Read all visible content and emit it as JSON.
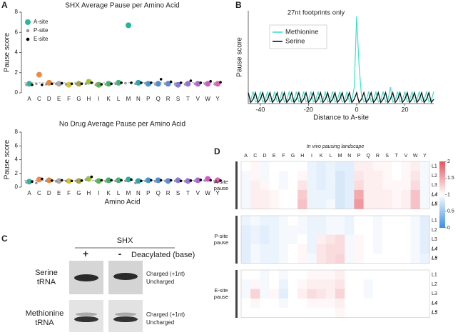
{
  "panel_labels": [
    "A",
    "B",
    "C",
    "D"
  ],
  "chart_data": [
    {
      "type": "dot",
      "title": "SHX Average Pause per Amino Acid",
      "y_label": "Pause score",
      "categories": [
        "A",
        "C",
        "D",
        "E",
        "F",
        "G",
        "H",
        "I",
        "K",
        "L",
        "M",
        "N",
        "P",
        "Q",
        "R",
        "S",
        "T",
        "V",
        "W",
        "Y"
      ],
      "ylim": [
        0,
        8
      ],
      "yticks": [
        0,
        2,
        4,
        6,
        8
      ],
      "reference_line": 1,
      "legend": "upper left",
      "series": [
        {
          "name": "A-site",
          "color": "#2bb5a2",
          "colors": [
            "#2bb5a2",
            "#f08a4b",
            "#e8893a",
            "#a9a9a9",
            "#d9c42a",
            "#a3a63a",
            "#9cc43a",
            "#54b948",
            "#3fb16a",
            "#43b57a",
            "#27b3a0",
            "#26a9b4",
            "#3a9ad8",
            "#4a8fd8",
            "#5a8ad8",
            "#8c7ad8",
            "#9a6fd8",
            "#b166d4",
            "#d257cf",
            "#e45fb0"
          ],
          "values": [
            0.9,
            1.8,
            1.0,
            0.9,
            0.8,
            0.9,
            1.1,
            0.8,
            0.9,
            1.0,
            6.7,
            1.0,
            0.9,
            0.9,
            0.9,
            0.8,
            0.9,
            0.9,
            0.9,
            0.9
          ]
        },
        {
          "name": "P-site",
          "color": "#999999",
          "values": [
            0.8,
            0.9,
            0.85,
            0.9,
            0.85,
            0.9,
            0.9,
            0.8,
            0.85,
            0.9,
            0.95,
            0.9,
            0.95,
            0.85,
            0.9,
            0.85,
            0.85,
            0.9,
            0.9,
            0.85
          ]
        },
        {
          "name": "E-site",
          "color": "#000000",
          "values": [
            0.8,
            0.8,
            0.9,
            0.95,
            0.9,
            0.9,
            1.0,
            0.85,
            0.9,
            1.0,
            1.0,
            1.0,
            1.0,
            1.35,
            1.1,
            1.0,
            1.2,
            1.0,
            1.15,
            1.05
          ]
        }
      ]
    },
    {
      "type": "dot",
      "title": "No Drug Average Pause per Amino Acid",
      "y_label": "Pause score",
      "x_label": "Amino Acid",
      "categories": [
        "A",
        "C",
        "D",
        "E",
        "F",
        "G",
        "H",
        "I",
        "K",
        "L",
        "M",
        "N",
        "P",
        "Q",
        "R",
        "S",
        "T",
        "V",
        "W",
        "Y"
      ],
      "ylim": [
        0,
        8
      ],
      "yticks": [
        0,
        2,
        4,
        6,
        8
      ],
      "reference_line": 1,
      "series": [
        {
          "color": "#2bb5a2",
          "colors": [
            "#2bb5a2",
            "#f08a4b",
            "#e8893a",
            "#a9a9a9",
            "#d9c42a",
            "#a3a63a",
            "#9cc43a",
            "#54b948",
            "#3fb16a",
            "#43b57a",
            "#27b3a0",
            "#26a9b4",
            "#3a9ad8",
            "#4a8fd8",
            "#5a8ad8",
            "#8c7ad8",
            "#9a6fd8",
            "#b166d4",
            "#d257cf",
            "#e45fb0"
          ],
          "values": [
            0.8,
            1.1,
            1.0,
            0.9,
            0.9,
            0.9,
            1.2,
            0.9,
            1.0,
            1.0,
            1.1,
            0.9,
            1.0,
            1.0,
            0.9,
            1.0,
            0.9,
            1.0,
            1.2,
            1.0
          ]
        },
        {
          "color": "#999999",
          "values": [
            0.7,
            0.6,
            0.9,
            0.85,
            0.9,
            0.9,
            1.1,
            0.9,
            0.85,
            0.9,
            0.9,
            0.6,
            0.9,
            0.85,
            0.9,
            0.9,
            0.85,
            0.9,
            0.95,
            0.8
          ]
        },
        {
          "color": "#000000",
          "values": [
            0.8,
            1.2,
            0.95,
            1.0,
            0.9,
            0.95,
            1.5,
            1.0,
            1.0,
            1.0,
            1.1,
            0.9,
            1.0,
            1.0,
            1.0,
            0.9,
            0.95,
            1.05,
            1.0,
            0.95
          ]
        }
      ]
    },
    {
      "type": "line",
      "title": "27nt footprints only",
      "x_label": "Distance to A-site",
      "y_label": "Pause score",
      "x": [
        -45,
        -44,
        -43,
        -42,
        -41,
        -40,
        -39,
        -38,
        -37,
        -36,
        -35,
        -34,
        -33,
        -32,
        -31,
        -30,
        -29,
        -28,
        -27,
        -26,
        -25,
        -24,
        -23,
        -22,
        -21,
        -20,
        -19,
        -18,
        -17,
        -16,
        -15,
        -14,
        -13,
        -12,
        -11,
        -10,
        -9,
        -8,
        -7,
        -6,
        -5,
        -4,
        -3,
        -2,
        -1,
        0,
        1,
        2,
        3,
        4,
        5,
        6,
        7,
        8,
        9,
        10,
        11,
        12,
        13,
        14,
        15,
        16,
        17,
        18,
        19,
        20,
        21,
        22,
        23,
        24,
        25,
        26,
        27,
        28,
        29,
        30,
        31,
        32
      ],
      "xlim": [
        -45,
        32
      ],
      "xticks": [
        -40,
        -20,
        0,
        20
      ],
      "ylim": [
        0,
        17
      ],
      "legend": "upper left",
      "series": [
        {
          "name": "Methionine",
          "color": "#3fe0d0",
          "values": [
            0.3,
            0.6,
            2.2,
            0.3,
            0.6,
            2.2,
            0.3,
            0.6,
            2.2,
            0.3,
            0.6,
            2.2,
            0.3,
            0.6,
            2.2,
            0.3,
            0.6,
            2.2,
            0.3,
            0.6,
            2.2,
            0.3,
            0.6,
            2.2,
            0.3,
            0.6,
            2.2,
            0.3,
            0.6,
            2.2,
            0.3,
            0.6,
            2.2,
            0.3,
            0.6,
            2.2,
            0.3,
            0.6,
            2.2,
            0.3,
            0.6,
            2.2,
            0.3,
            0.6,
            3.0,
            16,
            7,
            1.5,
            0.3,
            0.6,
            2.2,
            0.3,
            0.6,
            2.2,
            0.3,
            0.6,
            2.2,
            0.3,
            0.6,
            3.0,
            0.3,
            0.6,
            2.2,
            0.3,
            0.6,
            2.2,
            0.3,
            0.6,
            2.2,
            0.3,
            0.6,
            2.2,
            0.3,
            0.6,
            2.2,
            0.3,
            0.6,
            2.2
          ]
        },
        {
          "name": "Serine",
          "color": "#111111",
          "values": [
            2,
            0.2,
            0.8,
            2,
            0.2,
            0.8,
            2,
            0.2,
            0.8,
            2,
            0.2,
            0.8,
            2,
            0.2,
            0.8,
            2,
            0.2,
            0.8,
            2,
            0.2,
            0.8,
            2,
            0.2,
            0.8,
            2,
            0.2,
            0.8,
            2,
            0.2,
            0.8,
            2,
            0.2,
            0.8,
            2,
            0.2,
            0.8,
            2,
            0.2,
            0.8,
            2,
            0.2,
            0.8,
            2,
            0.2,
            0.8,
            2,
            0.2,
            0.8,
            2,
            0.2,
            0.8,
            2,
            0.2,
            0.8,
            2,
            0.2,
            0.8,
            2,
            0.2,
            0.8,
            2,
            0.2,
            0.8,
            2,
            0.2,
            0.8,
            2,
            0.2,
            0.8,
            2,
            0.2,
            0.8,
            2,
            0.2,
            0.8,
            2,
            0.2,
            0.8
          ]
        }
      ]
    },
    {
      "type": "heatmap",
      "title": "In vivo pausing landscape",
      "columns": [
        "A",
        "C",
        "D",
        "E",
        "F",
        "G",
        "H",
        "I",
        "K",
        "L",
        "M",
        "N",
        "P",
        "Q",
        "R",
        "S",
        "T",
        "V",
        "W",
        "Y"
      ],
      "rows": [
        "L1",
        "L2",
        "L3",
        "L4",
        "L5"
      ],
      "zlim": [
        0,
        2
      ],
      "zticks": [
        0,
        0.5,
        1,
        1.5,
        2
      ],
      "cmap": [
        "#3b8ee3",
        "#ffffff",
        "#e8525b"
      ],
      "groups": [
        {
          "name": "A-site pause",
          "values": [
            [
              1.0,
              1.05,
              0.95,
              1.0,
              1.0,
              1.0,
              1.0,
              0.9,
              0.85,
              0.9,
              0.85,
              0.85,
              1.1,
              1.1,
              1.05,
              1.05,
              1.0,
              1.05,
              1.1,
              0.95
            ],
            [
              0.95,
              1.05,
              0.95,
              1.0,
              0.95,
              1.0,
              1.05,
              0.9,
              0.85,
              0.9,
              0.8,
              0.85,
              1.15,
              1.1,
              1.1,
              1.05,
              1.0,
              1.05,
              1.15,
              0.95
            ],
            [
              0.95,
              1.1,
              1.05,
              1.0,
              0.95,
              1.0,
              1.15,
              0.9,
              0.85,
              0.9,
              0.8,
              0.85,
              1.2,
              1.1,
              1.1,
              1.05,
              1.05,
              1.05,
              1.2,
              0.95
            ],
            [
              0.95,
              1.1,
              1.1,
              1.05,
              1.0,
              1.0,
              1.3,
              0.9,
              0.9,
              0.9,
              0.8,
              0.85,
              1.5,
              1.1,
              1.1,
              1.1,
              1.05,
              1.1,
              1.35,
              0.95
            ],
            [
              0.95,
              1.1,
              1.1,
              1.05,
              1.0,
              1.0,
              1.35,
              0.9,
              0.9,
              0.95,
              0.8,
              0.85,
              1.6,
              1.1,
              1.1,
              1.1,
              1.05,
              1.1,
              1.35,
              0.95
            ]
          ]
        },
        {
          "name": "P-site pause",
          "values": [
            [
              0.9,
              0.95,
              0.9,
              0.9,
              0.95,
              1.0,
              0.95,
              0.9,
              0.9,
              0.95,
              0.95,
              0.9,
              1.0,
              1.0,
              0.95,
              1.0,
              1.0,
              1.0,
              0.95,
              0.85
            ],
            [
              0.85,
              0.9,
              0.85,
              0.9,
              0.95,
              0.95,
              0.95,
              0.9,
              0.9,
              0.95,
              0.95,
              0.9,
              1.0,
              1.0,
              0.95,
              1.0,
              1.0,
              1.0,
              0.95,
              0.85
            ],
            [
              0.85,
              0.9,
              0.85,
              0.9,
              0.95,
              0.95,
              1.0,
              0.9,
              1.1,
              1.15,
              1.2,
              0.95,
              1.05,
              1.0,
              0.95,
              1.0,
              1.0,
              1.0,
              0.95,
              0.85
            ],
            [
              0.85,
              0.95,
              0.9,
              0.9,
              0.95,
              1.0,
              1.05,
              0.9,
              1.15,
              1.2,
              1.2,
              0.95,
              1.05,
              1.0,
              0.95,
              1.0,
              1.0,
              1.0,
              0.95,
              0.85
            ],
            [
              0.85,
              0.95,
              0.9,
              0.9,
              0.95,
              1.0,
              1.05,
              0.95,
              1.15,
              1.2,
              1.25,
              0.95,
              1.05,
              1.0,
              1.0,
              1.0,
              1.0,
              1.0,
              0.95,
              0.9
            ]
          ]
        },
        {
          "name": "E-site pause",
          "values": [
            [
              1.0,
              1.0,
              0.95,
              1.0,
              0.95,
              1.0,
              1.0,
              1.05,
              1.05,
              1.05,
              1.1,
              1.0,
              1.0,
              1.0,
              1.0,
              1.0,
              1.0,
              1.0,
              1.0,
              1.0
            ],
            [
              0.95,
              1.05,
              0.95,
              1.0,
              0.9,
              1.0,
              1.05,
              1.1,
              1.1,
              1.1,
              1.15,
              1.0,
              1.0,
              0.95,
              1.0,
              1.0,
              1.0,
              1.0,
              1.0,
              1.0
            ],
            [
              0.95,
              1.25,
              0.95,
              1.05,
              0.85,
              1.0,
              1.1,
              1.2,
              1.15,
              1.1,
              1.25,
              1.0,
              1.0,
              0.95,
              1.0,
              1.0,
              1.0,
              1.0,
              1.0,
              1.0
            ],
            [
              1.0,
              1.05,
              1.0,
              1.0,
              0.95,
              1.0,
              1.0,
              1.05,
              1.05,
              1.05,
              1.1,
              1.0,
              1.0,
              1.0,
              1.0,
              1.0,
              1.0,
              1.0,
              1.0,
              1.0
            ],
            [
              1.0,
              1.0,
              1.0,
              1.0,
              1.0,
              1.0,
              1.0,
              1.0,
              1.0,
              1.0,
              1.05,
              1.0,
              1.0,
              1.0,
              1.0,
              1.0,
              1.0,
              1.0,
              1.0,
              1.0
            ]
          ]
        }
      ]
    }
  ],
  "gel": {
    "title": "SHX",
    "lanes": [
      "+",
      "-"
    ],
    "lane_note": "Deacylated (base)",
    "rows": [
      {
        "label": "Serine tRNA",
        "bands": [
          "Charged (+1nt)",
          "Uncharged"
        ]
      },
      {
        "label": "Methionine tRNA",
        "bands": [
          "Charged (+1nt)",
          "Uncharged"
        ]
      }
    ]
  }
}
